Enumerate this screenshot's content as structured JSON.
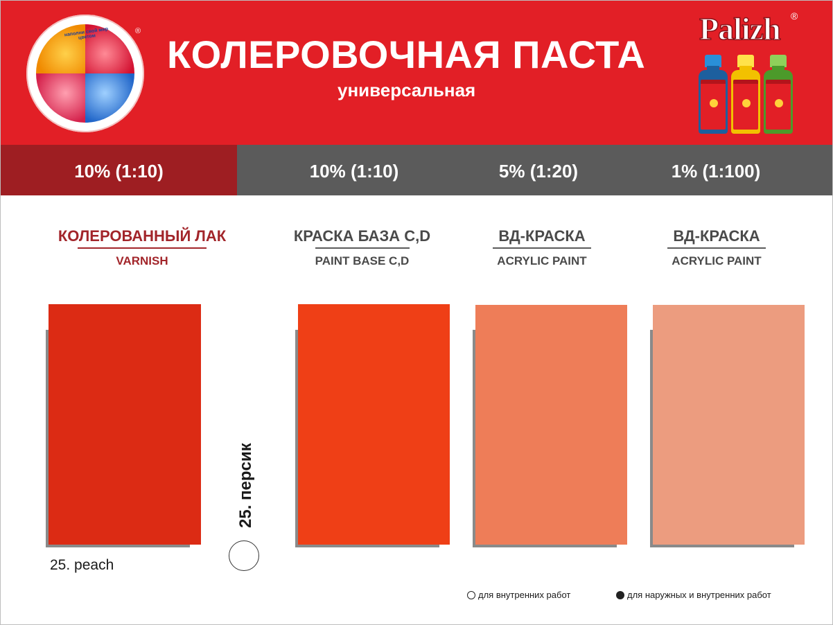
{
  "header": {
    "title": "КОЛЕРОВОЧНАЯ ПАСТА",
    "subtitle": "универсальная",
    "logo_text": "наполни свой мир цветом",
    "logo_reg": "®",
    "brand": "Palizh",
    "brand_reg": "®"
  },
  "ratios": [
    "10% (1:10)",
    "10% (1:10)",
    "5% (1:20)",
    "1% (1:100)"
  ],
  "columns": [
    {
      "title": "КОЛЕРОВАННЫЙ ЛАК",
      "subtitle": "VARNISH",
      "swatch_color": "#dc2b14"
    },
    {
      "title": "КРАСКА БАЗА С,D",
      "subtitle": "PAINT BASE C,D",
      "swatch_color": "#ef3f16"
    },
    {
      "title": "ВД-КРАСКА",
      "subtitle": "ACRYLIC PAINT",
      "swatch_color": "#ee7d58"
    },
    {
      "title": "ВД-КРАСКА",
      "subtitle": "ACRYLIC PAINT",
      "swatch_color": "#ec9c7f"
    }
  ],
  "color_name_ru": "25. персик",
  "color_name_en": "25. peach",
  "legend": {
    "indoor": "для внутренних работ",
    "outdoor_indoor": "для наружных и внутренних работ"
  },
  "colors": {
    "header_red": "#e21f26",
    "ratio_gray": "#5b5b5b",
    "ratio_first": "#9e1e22",
    "heading_red": "#a2252a",
    "heading_gray": "#4a4a4a"
  },
  "bottles": [
    {
      "color": "#1d5f9e",
      "cap": "#2a8fd8"
    },
    {
      "color": "#f2c100",
      "cap": "#ffe24a"
    },
    {
      "color": "#4c9a2a",
      "cap": "#8fd05a"
    }
  ]
}
